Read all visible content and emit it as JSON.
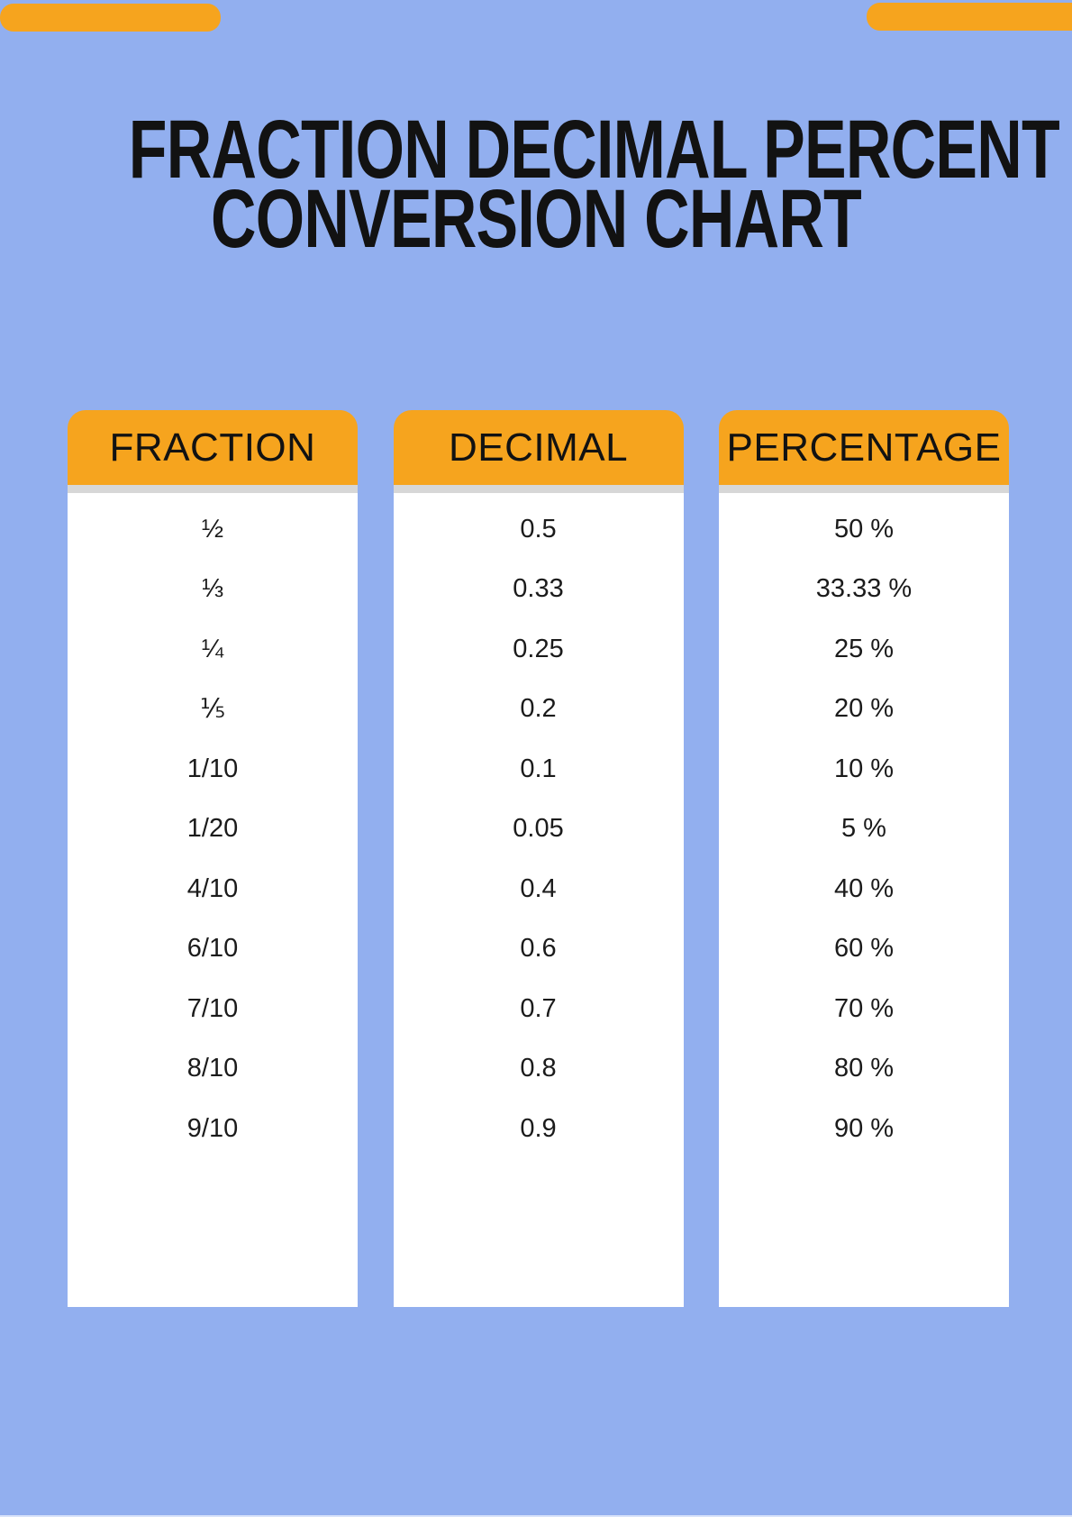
{
  "page": {
    "title_line1": "FRACTION DECIMAL PERCENT",
    "title_line2": "CONVERSION CHART",
    "colors": {
      "background": "#92AFEF",
      "accent": "#F6A41E",
      "title_text": "#121212",
      "divider": "#D7D7D7",
      "cell_text": "#1B1B1B",
      "column_background": "#FFFFFF"
    }
  },
  "chart_data": {
    "type": "table",
    "title": "FRACTION DECIMAL PERCENT CONVERSION CHART",
    "columns": [
      "FRACTION",
      "DECIMAL",
      "PERCENTAGE"
    ],
    "rows": [
      [
        "½",
        "0.5",
        "50 %"
      ],
      [
        "⅓",
        "0.33",
        "33.33 %"
      ],
      [
        "¼",
        "0.25",
        "25 %"
      ],
      [
        "⅕",
        "0.2",
        "20 %"
      ],
      [
        "1/10",
        "0.1",
        "10 %"
      ],
      [
        "1/20",
        "0.05",
        "5 %"
      ],
      [
        "4/10",
        "0.4",
        "40 %"
      ],
      [
        "6/10",
        "0.6",
        "60 %"
      ],
      [
        "7/10",
        "0.7",
        "70 %"
      ],
      [
        "8/10",
        "0.8",
        "80 %"
      ],
      [
        "9/10",
        "0.9",
        "90 %"
      ]
    ]
  }
}
